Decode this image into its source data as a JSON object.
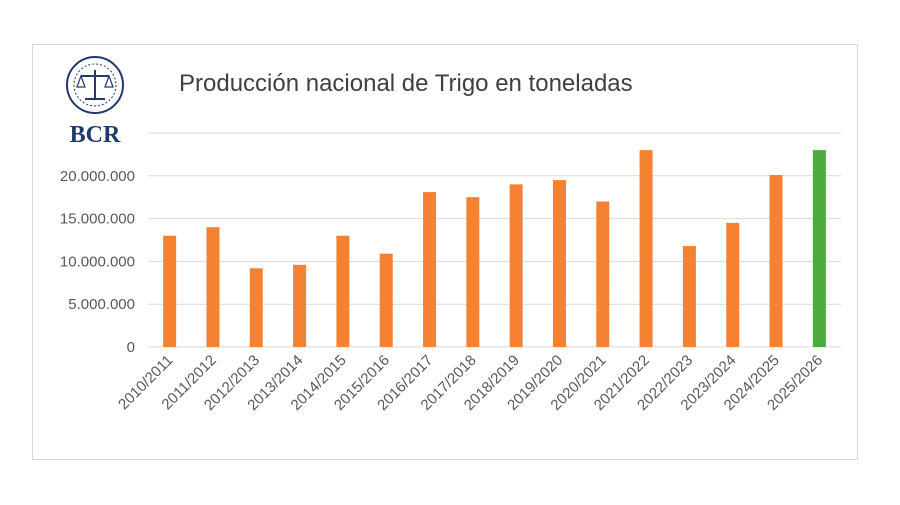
{
  "logo": {
    "text": "BCR"
  },
  "chart_data": {
    "type": "bar",
    "title": "Producción nacional de Trigo  en toneladas",
    "xlabel": "",
    "ylabel": "",
    "categories": [
      "2010/2011",
      "2011/2012",
      "2012/2013",
      "2013/2014",
      "2014/2015",
      "2015/2016",
      "2016/2017",
      "2017/2018",
      "2018/2019",
      "2019/2020",
      "2020/2021",
      "2021/2022",
      "2022/2023",
      "2023/2024",
      "2024/2025",
      "2025/2026"
    ],
    "values": [
      13000000,
      14000000,
      9200000,
      9600000,
      13000000,
      10900000,
      18100000,
      17500000,
      19000000,
      19500000,
      17000000,
      23000000,
      11800000,
      14500000,
      20100000,
      23000000
    ],
    "bar_colors": [
      "#f58232",
      "#f58232",
      "#f58232",
      "#f58232",
      "#f58232",
      "#f58232",
      "#f58232",
      "#f58232",
      "#f58232",
      "#f58232",
      "#f58232",
      "#f58232",
      "#f58232",
      "#f58232",
      "#f58232",
      "#4daa3f"
    ],
    "ylim": [
      0,
      25000000
    ],
    "yticks": [
      0,
      5000000,
      10000000,
      15000000,
      20000000
    ],
    "ytick_labels": [
      "0",
      "5.000.000",
      "10.000.000",
      "15.000.000",
      "20.000.000"
    ],
    "grid": true,
    "legend": "none"
  }
}
